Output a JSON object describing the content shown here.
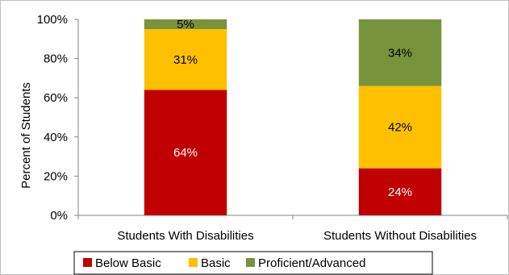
{
  "chart_data": {
    "type": "bar",
    "stacked": true,
    "categories": [
      "Students With Disabilities",
      "Students Without Disabilities"
    ],
    "series": [
      {
        "name": "Below Basic",
        "values": [
          64,
          24
        ],
        "labels": [
          "64%",
          "24%"
        ],
        "color": "#c00000",
        "label_color": "#ffffff"
      },
      {
        "name": "Basic",
        "values": [
          31,
          42
        ],
        "labels": [
          "31%",
          "42%"
        ],
        "color": "#ffc000",
        "label_color": "#000000"
      },
      {
        "name": "Proficient/Advanced",
        "values": [
          5,
          34
        ],
        "labels": [
          "5%",
          "34%"
        ],
        "color": "#77933c",
        "label_color": "#000000"
      }
    ],
    "ylabel": "Percent of Students",
    "ylim": [
      0,
      100
    ],
    "yticks": [
      0,
      20,
      40,
      60,
      80,
      100
    ],
    "ytick_labels": [
      "0%",
      "20%",
      "40%",
      "60%",
      "80%",
      "100%"
    ],
    "grid": false,
    "legend_position": "bottom"
  }
}
